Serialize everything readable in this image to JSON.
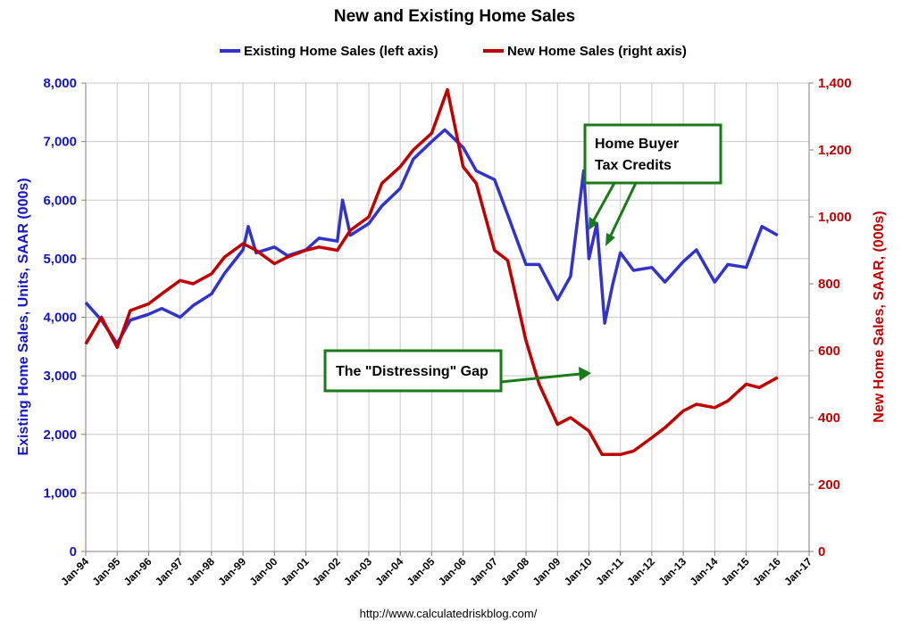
{
  "chart_data": {
    "type": "line",
    "title": "New and Existing Home Sales",
    "source": "http://www.calculatedriskblog.com/",
    "x_start": "Jan-94",
    "x_end": "Jan-17",
    "x_tick_labels": [
      "Jan-94",
      "Jan-95",
      "Jan-96",
      "Jan-97",
      "Jan-98",
      "Jan-99",
      "Jan-00",
      "Jan-01",
      "Jan-02",
      "Jan-03",
      "Jan-04",
      "Jan-05",
      "Jan-06",
      "Jan-07",
      "Jan-08",
      "Jan-09",
      "Jan-10",
      "Jan-11",
      "Jan-12",
      "Jan-13",
      "Jan-14",
      "Jan-15",
      "Jan-16",
      "Jan-17"
    ],
    "y_left": {
      "label": "Existing Home Sales, Units, SAAR (000s)",
      "range": [
        0,
        8000
      ],
      "tick_labels": [
        "0",
        "1,000",
        "2,000",
        "3,000",
        "4,000",
        "5,000",
        "6,000",
        "7,000",
        "8,000"
      ]
    },
    "y_right": {
      "label": "New Home Sales, SAAR, (000s)",
      "range": [
        0,
        1400
      ],
      "tick_labels": [
        "0",
        "200",
        "400",
        "600",
        "800",
        "1,000",
        "1,200",
        "1,400"
      ]
    },
    "grid": true,
    "legend_position": "top",
    "series": [
      {
        "name": "Existing Home Sales (left axis)",
        "axis": "left",
        "color": "#3333cc",
        "points": [
          [
            "Jan-94",
            4250
          ],
          [
            "Jul-94",
            3950
          ],
          [
            "Jan-95",
            3550
          ],
          [
            "Jun-95",
            3950
          ],
          [
            "Jan-96",
            4050
          ],
          [
            "Jun-96",
            4150
          ],
          [
            "Jan-97",
            4000
          ],
          [
            "Jun-97",
            4200
          ],
          [
            "Jan-98",
            4400
          ],
          [
            "Jun-98",
            4750
          ],
          [
            "Jan-99",
            5150
          ],
          [
            "Mar-99",
            5550
          ],
          [
            "Jun-99",
            5100
          ],
          [
            "Jan-00",
            5200
          ],
          [
            "Jun-00",
            5050
          ],
          [
            "Jan-01",
            5150
          ],
          [
            "Jun-01",
            5350
          ],
          [
            "Jan-02",
            5300
          ],
          [
            "Mar-02",
            6000
          ],
          [
            "Jun-02",
            5400
          ],
          [
            "Jan-03",
            5600
          ],
          [
            "Jun-03",
            5900
          ],
          [
            "Jan-04",
            6200
          ],
          [
            "Jun-04",
            6700
          ],
          [
            "Jan-05",
            7000
          ],
          [
            "Jun-05",
            7200
          ],
          [
            "Jan-06",
            6900
          ],
          [
            "Jun-06",
            6500
          ],
          [
            "Jan-07",
            6350
          ],
          [
            "Jun-07",
            5750
          ],
          [
            "Jan-08",
            4900
          ],
          [
            "Jun-08",
            4900
          ],
          [
            "Jan-09",
            4300
          ],
          [
            "Jun-09",
            4700
          ],
          [
            "Nov-09",
            6500
          ],
          [
            "Jan-10",
            5000
          ],
          [
            "Apr-10",
            5600
          ],
          [
            "Jul-10",
            3900
          ],
          [
            "Oct-10",
            4550
          ],
          [
            "Jan-11",
            5100
          ],
          [
            "Jun-11",
            4800
          ],
          [
            "Jan-12",
            4850
          ],
          [
            "Jun-12",
            4600
          ],
          [
            "Jan-13",
            4950
          ],
          [
            "Jun-13",
            5150
          ],
          [
            "Jan-14",
            4600
          ],
          [
            "Jun-14",
            4900
          ],
          [
            "Jan-15",
            4850
          ],
          [
            "Jul-15",
            5550
          ],
          [
            "Jan-16",
            5400
          ]
        ]
      },
      {
        "name": "New Home Sales (right axis)",
        "axis": "right",
        "color": "#c00000",
        "points": [
          [
            "Jan-94",
            620
          ],
          [
            "Jul-94",
            700
          ],
          [
            "Jan-95",
            610
          ],
          [
            "Jun-95",
            720
          ],
          [
            "Jan-96",
            740
          ],
          [
            "Jun-96",
            770
          ],
          [
            "Jan-97",
            810
          ],
          [
            "Jun-97",
            800
          ],
          [
            "Jan-98",
            830
          ],
          [
            "Jun-98",
            880
          ],
          [
            "Jan-99",
            920
          ],
          [
            "Jun-99",
            900
          ],
          [
            "Jan-00",
            860
          ],
          [
            "Jun-00",
            880
          ],
          [
            "Jan-01",
            900
          ],
          [
            "Jun-01",
            910
          ],
          [
            "Jan-02",
            900
          ],
          [
            "Jun-02",
            960
          ],
          [
            "Jan-03",
            1000
          ],
          [
            "Jun-03",
            1100
          ],
          [
            "Jan-04",
            1150
          ],
          [
            "Jun-04",
            1200
          ],
          [
            "Jan-05",
            1250
          ],
          [
            "Jul-05",
            1380
          ],
          [
            "Jan-06",
            1150
          ],
          [
            "Jun-06",
            1100
          ],
          [
            "Jan-07",
            900
          ],
          [
            "Jun-07",
            870
          ],
          [
            "Jan-08",
            630
          ],
          [
            "Jun-08",
            500
          ],
          [
            "Jan-09",
            380
          ],
          [
            "Jun-09",
            400
          ],
          [
            "Jan-10",
            360
          ],
          [
            "Jun-10",
            290
          ],
          [
            "Jan-11",
            290
          ],
          [
            "Jun-11",
            300
          ],
          [
            "Jan-12",
            340
          ],
          [
            "Jun-12",
            370
          ],
          [
            "Jan-13",
            420
          ],
          [
            "Jun-13",
            440
          ],
          [
            "Jan-14",
            430
          ],
          [
            "Jun-14",
            450
          ],
          [
            "Jan-15",
            500
          ],
          [
            "Jun-15",
            490
          ],
          [
            "Jan-16",
            520
          ]
        ]
      }
    ],
    "annotations": [
      {
        "lines": [
          "Home Buyer",
          "Tax Credits"
        ]
      },
      {
        "lines": [
          "The \"Distressing\" Gap"
        ]
      }
    ]
  }
}
